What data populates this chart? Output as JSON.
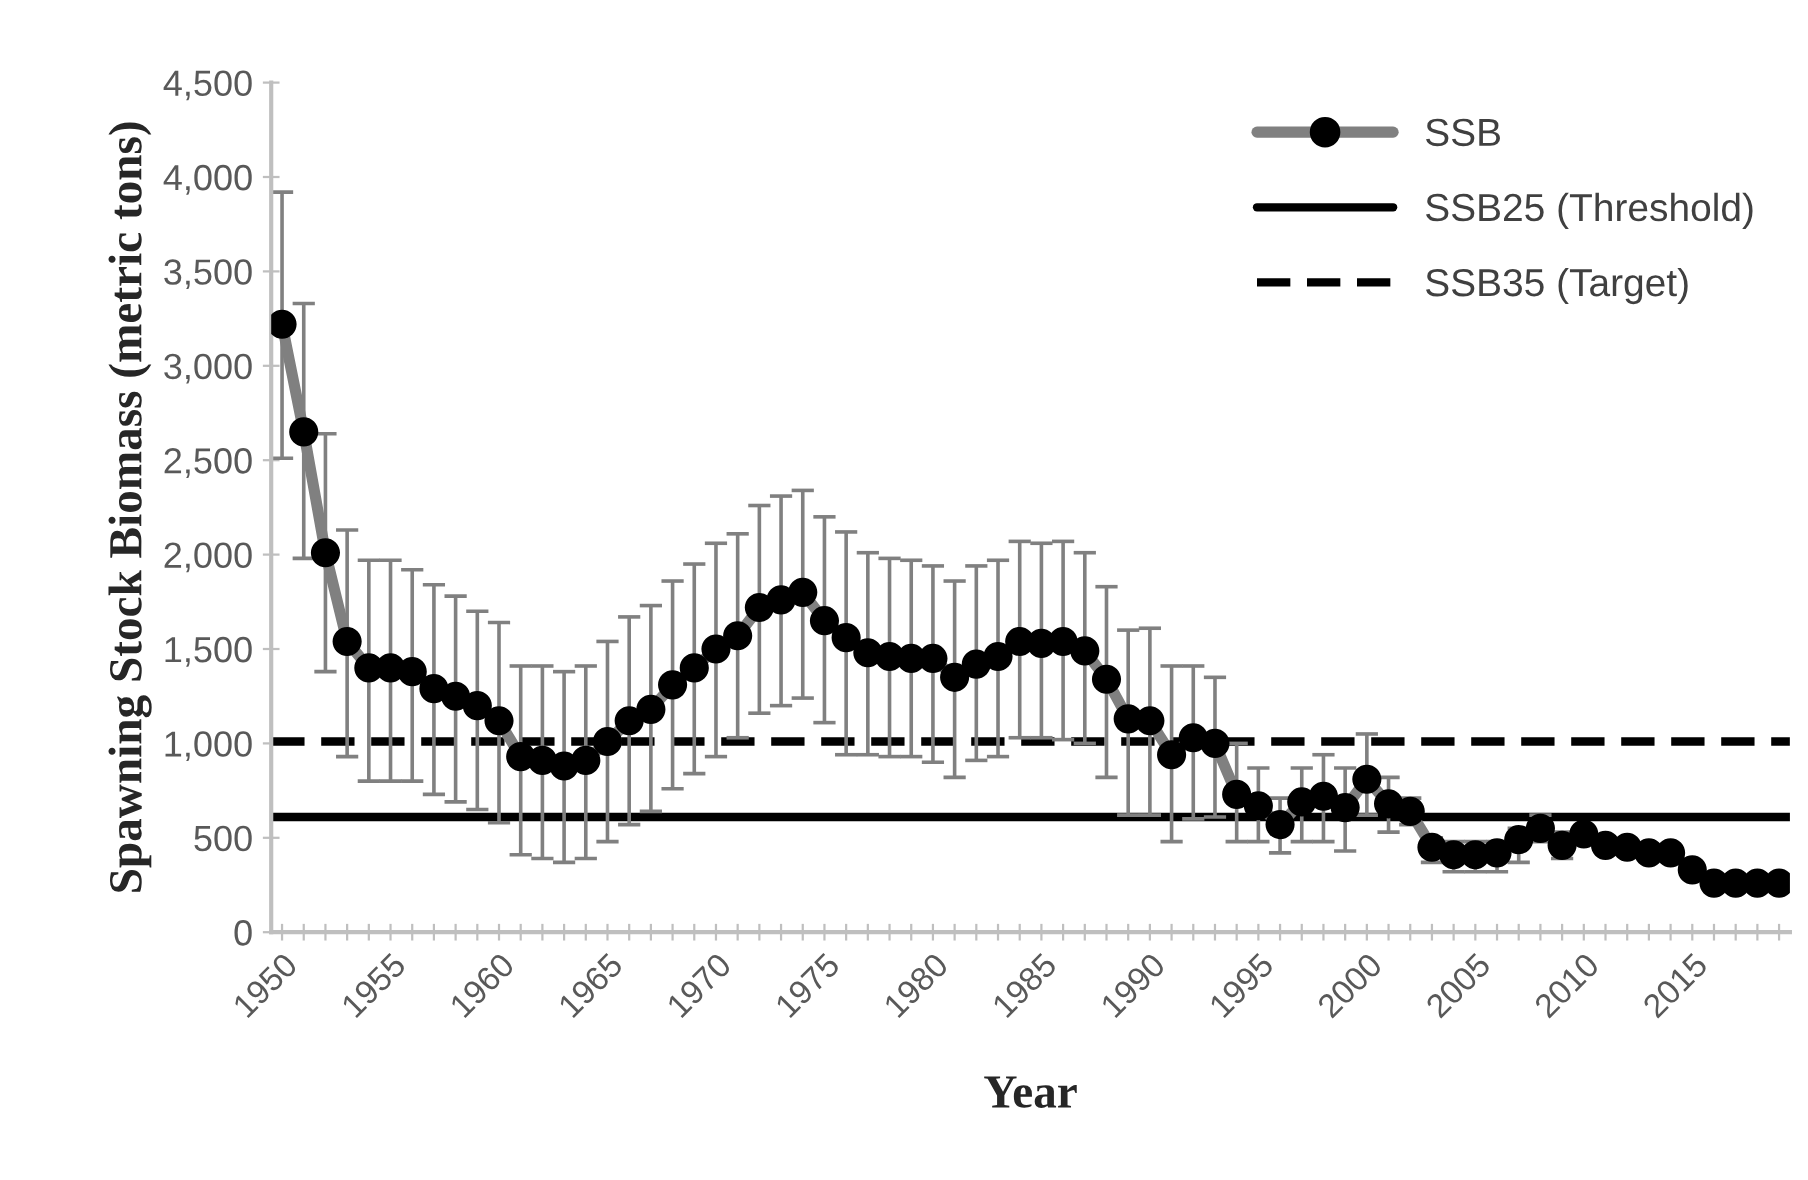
{
  "chart_data": {
    "type": "line",
    "xlabel": "Year",
    "ylabel": "Spawning Stock Biomass (metric tons)",
    "categories": [
      "1950",
      null,
      null,
      null,
      null,
      "1955",
      null,
      null,
      null,
      null,
      "1960",
      null,
      null,
      null,
      null,
      "1965",
      null,
      null,
      null,
      null,
      "1970",
      null,
      null,
      null,
      null,
      "1975",
      null,
      null,
      null,
      null,
      "1980",
      null,
      null,
      null,
      null,
      "1985",
      null,
      null,
      null,
      null,
      "1990",
      null,
      null,
      null,
      null,
      "1995",
      null,
      null,
      null,
      null,
      "2000",
      null,
      null,
      null,
      null,
      "2005",
      null,
      null,
      null,
      null,
      "2010",
      null,
      null,
      null,
      null,
      "2015",
      null,
      null,
      null,
      null
    ],
    "series": [
      {
        "name": "SSB",
        "color": "#808080",
        "marker": "circle",
        "line_style": "solid",
        "colors": [
          "#000000",
          "#000000",
          "#000000",
          "#000000",
          "#000000",
          "#000000",
          "#000000",
          "#000000",
          "#000000",
          "#000000",
          "#000000",
          "#000000",
          "#000000",
          "#000000",
          "#000000",
          "#000000",
          "#000000",
          "#000000",
          "#000000",
          "#000000",
          "#000000",
          "#000000",
          "#000000",
          "#000000",
          "#000000",
          "#000000",
          "#000000",
          "#000000",
          "#000000",
          "#000000",
          "#000000",
          "#000000",
          "#000000",
          "#000000",
          "#000000",
          "#000000",
          "#000000",
          "#000000",
          "#000000",
          "#000000",
          "#000000",
          "#000000",
          "#000000",
          "#000000",
          "#000000",
          "#000000",
          "#000000",
          "#000000",
          "#000000",
          "#000000",
          "#000000",
          "#000000",
          "#000000",
          "#000000",
          "#000000",
          "#000000",
          "#000000",
          "#000000",
          "#000000",
          "#000000",
          "#000000",
          "#000000",
          "#000000",
          "#000000",
          "#000000",
          "#000000",
          "#000000",
          "#000000",
          "#000000",
          "#000000"
        ],
        "values": [
          3220,
          2650,
          2010,
          1540,
          1400,
          1400,
          1380,
          1290,
          1250,
          1200,
          1120,
          930,
          910,
          880,
          910,
          1010,
          1120,
          1180,
          1310,
          1400,
          1500,
          1570,
          1720,
          1760,
          1800,
          1650,
          1560,
          1480,
          1460,
          1450,
          1450,
          1350,
          1420,
          1460,
          1540,
          1530,
          1540,
          1490,
          1340,
          1130,
          1120,
          940,
          1030,
          1000,
          730,
          670,
          570,
          690,
          720,
          660,
          810,
          680,
          640,
          450,
          410,
          410,
          420,
          490,
          550,
          460,
          520,
          460,
          450,
          420,
          420,
          330,
          260,
          260,
          260,
          260
        ],
        "errors": [
          [
            2510,
            3920
          ],
          [
            1980,
            3330
          ],
          [
            1380,
            2640
          ],
          [
            930,
            2130
          ],
          [
            800,
            1970
          ],
          [
            800,
            1970
          ],
          [
            800,
            1920
          ],
          [
            730,
            1840
          ],
          [
            690,
            1780
          ],
          [
            650,
            1700
          ],
          [
            580,
            1640
          ],
          [
            410,
            1410
          ],
          [
            390,
            1410
          ],
          [
            370,
            1380
          ],
          [
            390,
            1410
          ],
          [
            480,
            1540
          ],
          [
            570,
            1670
          ],
          [
            640,
            1730
          ],
          [
            760,
            1860
          ],
          [
            840,
            1950
          ],
          [
            930,
            2060
          ],
          [
            1030,
            2110
          ],
          [
            1160,
            2260
          ],
          [
            1200,
            2310
          ],
          [
            1240,
            2340
          ],
          [
            1110,
            2200
          ],
          [
            940,
            2120
          ],
          [
            940,
            2010
          ],
          [
            930,
            1980
          ],
          [
            930,
            1970
          ],
          [
            900,
            1940
          ],
          [
            820,
            1860
          ],
          [
            910,
            1940
          ],
          [
            930,
            1970
          ],
          [
            1030,
            2070
          ],
          [
            1030,
            2060
          ],
          [
            1020,
            2070
          ],
          [
            1000,
            2010
          ],
          [
            820,
            1830
          ],
          [
            620,
            1600
          ],
          [
            620,
            1610
          ],
          [
            480,
            1410
          ],
          [
            600,
            1410
          ],
          [
            610,
            1350
          ],
          [
            480,
            1000
          ],
          [
            480,
            870
          ],
          [
            420,
            710
          ],
          [
            480,
            870
          ],
          [
            480,
            940
          ],
          [
            430,
            870
          ],
          [
            620,
            1050
          ],
          [
            530,
            820
          ],
          [
            570,
            710
          ],
          [
            370,
            500
          ],
          [
            320,
            480
          ],
          [
            320,
            480
          ],
          [
            320,
            480
          ],
          [
            370,
            550
          ],
          [
            480,
            620
          ],
          [
            390,
            530
          ],
          null,
          null,
          null,
          null,
          null,
          null,
          null,
          null,
          null,
          null
        ]
      }
    ],
    "ref_lines": [
      {
        "axis": "y",
        "value": 610,
        "label": "SSB25 (Threshold)",
        "color": "#000000",
        "line_style": "solid"
      },
      {
        "axis": "y",
        "value": 1010,
        "label": "SSB35 (Target)",
        "color": "#000000",
        "line_style": "dashed"
      }
    ],
    "ylim": [
      0,
      4500
    ],
    "yticks": [
      {
        "value": 0,
        "label": "0"
      },
      {
        "value": 500,
        "label": "500"
      },
      {
        "value": 1000,
        "label": "1,000"
      },
      {
        "value": 1500,
        "label": "1,500"
      },
      {
        "value": 2000,
        "label": "2,000"
      },
      {
        "value": 2500,
        "label": "2,500"
      },
      {
        "value": 3000,
        "label": "3,000"
      },
      {
        "value": 3500,
        "label": "3,500"
      },
      {
        "value": 4000,
        "label": "4,000"
      },
      {
        "value": 4500,
        "label": "4,500"
      }
    ],
    "grid": false,
    "legend": "top right"
  }
}
